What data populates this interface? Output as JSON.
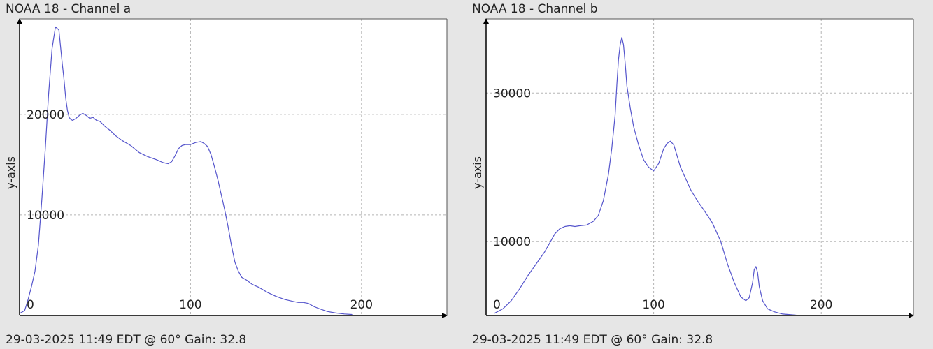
{
  "chart_data": [
    {
      "type": "line",
      "title": "NOAA 18 - Channel a",
      "footer": "29-03-2025 11:49 EDT @ 60° Gain: 32.8",
      "ylabel": "y-axis",
      "xlabel": "",
      "xlim": [
        0,
        250
      ],
      "ylim": [
        0,
        29500
      ],
      "xticks": [
        0,
        100,
        200
      ],
      "yticks": [
        10000,
        20000
      ],
      "grid": true,
      "colors": {
        "line": "#5555cc",
        "grid": "#b5b5b5",
        "plot_bg": "#ffffff",
        "axis": "#000000"
      },
      "series": [
        {
          "x": [
            0,
            3,
            5,
            7,
            9,
            11,
            13,
            15,
            17,
            19,
            21,
            23,
            25,
            26,
            27,
            28,
            29,
            30,
            31,
            33,
            35,
            37,
            39,
            41,
            43,
            45,
            47,
            50,
            53,
            56,
            60,
            65,
            70,
            75,
            80,
            84,
            87,
            89,
            91,
            93,
            95,
            97,
            100,
            103,
            106,
            108,
            110,
            112,
            114,
            116,
            118,
            120,
            122,
            124,
            126,
            128,
            130,
            133,
            136,
            140,
            145,
            150,
            155,
            160,
            163,
            166,
            169,
            172,
            175,
            180,
            185,
            190,
            195
          ],
          "y": [
            200,
            500,
            1600,
            2900,
            4400,
            7000,
            11500,
            16500,
            22000,
            26500,
            28700,
            28400,
            25000,
            23500,
            21600,
            20400,
            19700,
            19500,
            19400,
            19600,
            19900,
            20100,
            19900,
            19600,
            19700,
            19400,
            19300,
            18800,
            18400,
            17900,
            17400,
            16900,
            16200,
            15800,
            15500,
            15200,
            15100,
            15300,
            15900,
            16600,
            16900,
            17000,
            17000,
            17200,
            17300,
            17100,
            16800,
            16000,
            14800,
            13500,
            12000,
            10500,
            8800,
            6900,
            5300,
            4400,
            3800,
            3500,
            3100,
            2800,
            2300,
            1900,
            1600,
            1400,
            1300,
            1300,
            1200,
            900,
            700,
            400,
            250,
            150,
            100
          ]
        }
      ]
    },
    {
      "type": "line",
      "title": "NOAA 18 - Channel b",
      "footer": "29-03-2025 11:49 EDT @ 60° Gain: 32.8",
      "ylabel": "y-axis",
      "xlabel": "",
      "xlim": [
        0,
        255
      ],
      "ylim": [
        0,
        40000
      ],
      "xticks": [
        0,
        100,
        200
      ],
      "yticks": [
        10000,
        30000
      ],
      "grid": true,
      "colors": {
        "line": "#5555cc",
        "grid": "#b5b5b5",
        "plot_bg": "#ffffff",
        "axis": "#000000"
      },
      "series": [
        {
          "x": [
            5,
            10,
            15,
            20,
            25,
            30,
            35,
            38,
            41,
            44,
            47,
            50,
            53,
            56,
            60,
            64,
            67,
            70,
            73,
            75,
            77,
            78,
            79,
            80,
            81,
            82,
            83,
            84,
            86,
            88,
            91,
            94,
            97,
            100,
            103,
            106,
            108,
            110,
            112,
            114,
            116,
            119,
            122,
            126,
            130,
            135,
            140,
            144,
            148,
            152,
            155,
            157,
            159,
            160,
            161,
            162,
            163,
            165,
            168,
            172,
            177,
            182,
            185
          ],
          "y": [
            300,
            900,
            2000,
            3600,
            5400,
            7000,
            8600,
            9800,
            11000,
            11700,
            12000,
            12100,
            12000,
            12100,
            12200,
            12700,
            13500,
            15500,
            19000,
            22500,
            27000,
            31000,
            34500,
            36500,
            37500,
            36500,
            34000,
            31000,
            28000,
            25500,
            23000,
            21000,
            20000,
            19500,
            20500,
            22500,
            23200,
            23500,
            23000,
            21500,
            20000,
            18500,
            17000,
            15500,
            14200,
            12500,
            10000,
            7000,
            4500,
            2500,
            2000,
            2400,
            4400,
            6200,
            6600,
            5800,
            3900,
            2000,
            900,
            500,
            200,
            100,
            50
          ]
        }
      ]
    }
  ]
}
